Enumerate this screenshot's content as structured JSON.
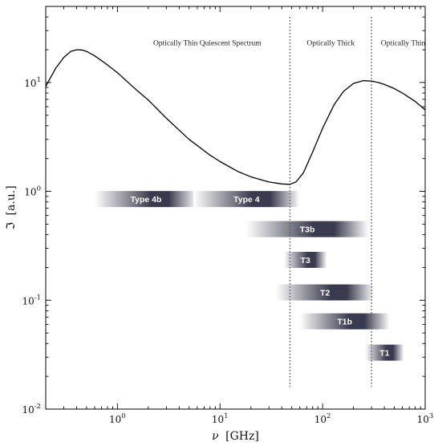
{
  "chart_data": {
    "type": "line",
    "x_scale": "log",
    "y_scale": "log",
    "xlim": [
      0.2,
      1000
    ],
    "ylim": [
      0.01,
      50
    ],
    "xlabel_symbol": "ν",
    "xlabel_unit": "[GHz]",
    "ylabel_symbol": "ℑ",
    "ylabel_unit": "[a.u.]",
    "x_ticks": [
      {
        "value": 1,
        "base": "10",
        "exp": "0"
      },
      {
        "value": 10,
        "base": "10",
        "exp": "1"
      },
      {
        "value": 100,
        "base": "10",
        "exp": "2"
      },
      {
        "value": 1000,
        "base": "10",
        "exp": "3"
      }
    ],
    "y_ticks": [
      {
        "value": 0.01,
        "base": "10",
        "exp": "-2"
      },
      {
        "value": 0.1,
        "base": "10",
        "exp": "-1"
      },
      {
        "value": 1,
        "base": "10",
        "exp": "0"
      },
      {
        "value": 10,
        "base": "10",
        "exp": "1"
      }
    ],
    "series": [
      {
        "x": [
          0.2,
          0.25,
          0.3,
          0.35,
          0.4,
          0.45,
          0.5,
          0.6,
          0.8,
          1,
          1.5,
          2,
          3,
          5,
          8,
          10,
          15,
          20,
          30,
          40,
          48,
          55,
          65,
          80,
          100,
          130,
          160,
          200,
          250,
          300,
          350,
          400,
          500,
          600,
          800,
          1000
        ],
        "y": [
          9.2,
          13.5,
          17.0,
          19.3,
          20.0,
          19.9,
          19.3,
          17.6,
          14.5,
          12.3,
          8.7,
          6.9,
          4.7,
          3.0,
          2.15,
          1.88,
          1.52,
          1.36,
          1.22,
          1.17,
          1.16,
          1.22,
          1.48,
          2.3,
          3.8,
          6.3,
          8.3,
          9.8,
          10.4,
          10.3,
          10.0,
          9.6,
          8.8,
          8.0,
          6.7,
          5.6
        ]
      }
    ],
    "boundaries": [
      {
        "x": 48,
        "y_top": 40,
        "y_bottom": 0.016
      },
      {
        "x": 300,
        "y_top": 40,
        "y_bottom": 0.016
      }
    ],
    "regions": [
      {
        "label": "Optically Thin Quiescent Spectrum",
        "x": 7.5,
        "y": 22
      },
      {
        "label": "Optically Thick",
        "x": 120,
        "y": 22
      },
      {
        "label": "Optically Thin",
        "x": 610,
        "y": 22
      }
    ],
    "bands": [
      {
        "label": "Type 4b",
        "x_start": 0.6,
        "x_end": 6,
        "y": 0.85
      },
      {
        "label": "Type 4",
        "x_start": 5.5,
        "x_end": 60,
        "y": 0.85
      },
      {
        "label": "T3b",
        "x_start": 18,
        "x_end": 280,
        "y": 0.45
      },
      {
        "label": "T3",
        "x_start": 42,
        "x_end": 110,
        "y": 0.235
      },
      {
        "label": "T2",
        "x_start": 35,
        "x_end": 320,
        "y": 0.118
      },
      {
        "label": "T1b",
        "x_start": 60,
        "x_end": 450,
        "y": 0.064
      },
      {
        "label": "T1",
        "x_start": 260,
        "x_end": 620,
        "y": 0.033
      }
    ],
    "colors": {
      "line": "#000000",
      "boundary": "#666666",
      "band_dark": "#3a3a4e",
      "band_light": "#ffffff"
    }
  }
}
